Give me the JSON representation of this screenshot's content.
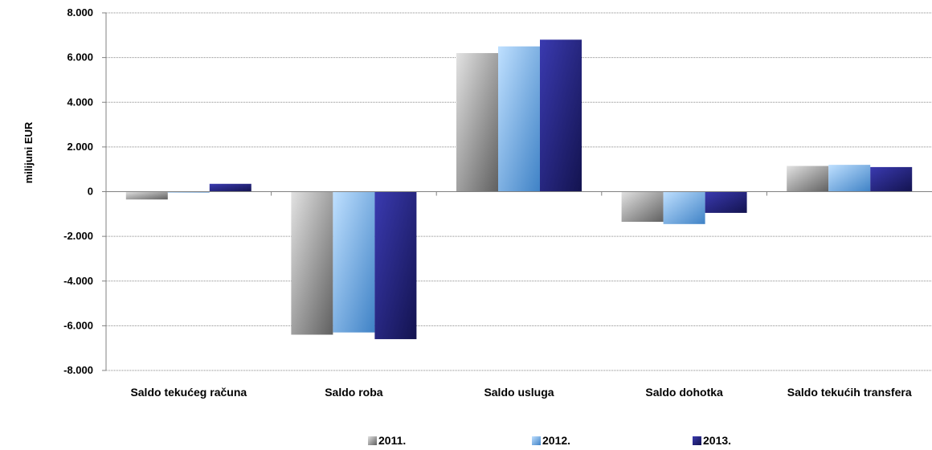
{
  "chart_data": {
    "type": "bar",
    "ylabel": "milijuni EUR",
    "xlabel": "",
    "ylim": [
      -8000,
      8000
    ],
    "yticks": [
      8000,
      6000,
      4000,
      2000,
      0,
      -2000,
      -4000,
      -6000,
      -8000
    ],
    "ytick_labels": [
      "8.000",
      "6.000",
      "4.000",
      "2.000",
      "0",
      "-2.000",
      "-4.000",
      "-6.000",
      "-8.000"
    ],
    "grid": "horizontal",
    "legend_position": "bottom",
    "categories": [
      "Saldo tekućeg računa",
      "Saldo roba",
      "Saldo usluga",
      "Saldo dohotka",
      "Saldo tekućih transfera"
    ],
    "series": [
      {
        "name": "2011.",
        "color": "#9a9a9a",
        "values": [
          -350,
          -6400,
          6200,
          -1350,
          1150
        ]
      },
      {
        "name": "2012.",
        "color": "#6fb0e6",
        "values": [
          -40,
          -6300,
          6500,
          -1450,
          1200
        ]
      },
      {
        "name": "2013.",
        "color": "#2b2b8f",
        "values": [
          350,
          -6600,
          6800,
          -950,
          1100
        ]
      }
    ]
  }
}
